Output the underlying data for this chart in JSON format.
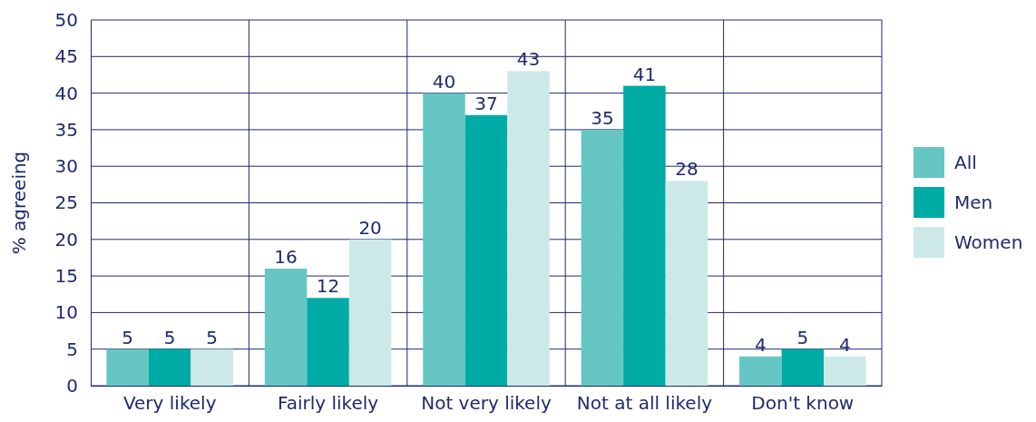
{
  "chart_data": {
    "type": "bar",
    "ylabel": "% agreeing",
    "categories": [
      "Very likely",
      "Fairly likely",
      "Not very likely",
      "Not at all likely",
      "Don't know"
    ],
    "series": [
      {
        "name": "All",
        "color": "#66c6c4",
        "values": [
          5,
          16,
          40,
          35,
          4
        ]
      },
      {
        "name": "Men",
        "color": "#00aba5",
        "values": [
          5,
          12,
          37,
          41,
          5
        ]
      },
      {
        "name": "Women",
        "color": "#cce9e8",
        "values": [
          5,
          20,
          43,
          28,
          4
        ]
      }
    ],
    "ylim": [
      0,
      50
    ],
    "yticks": [
      0,
      5,
      10,
      15,
      20,
      25,
      30,
      35,
      40,
      45,
      50
    ],
    "grid": true,
    "legend": "right",
    "data_labels": true
  }
}
